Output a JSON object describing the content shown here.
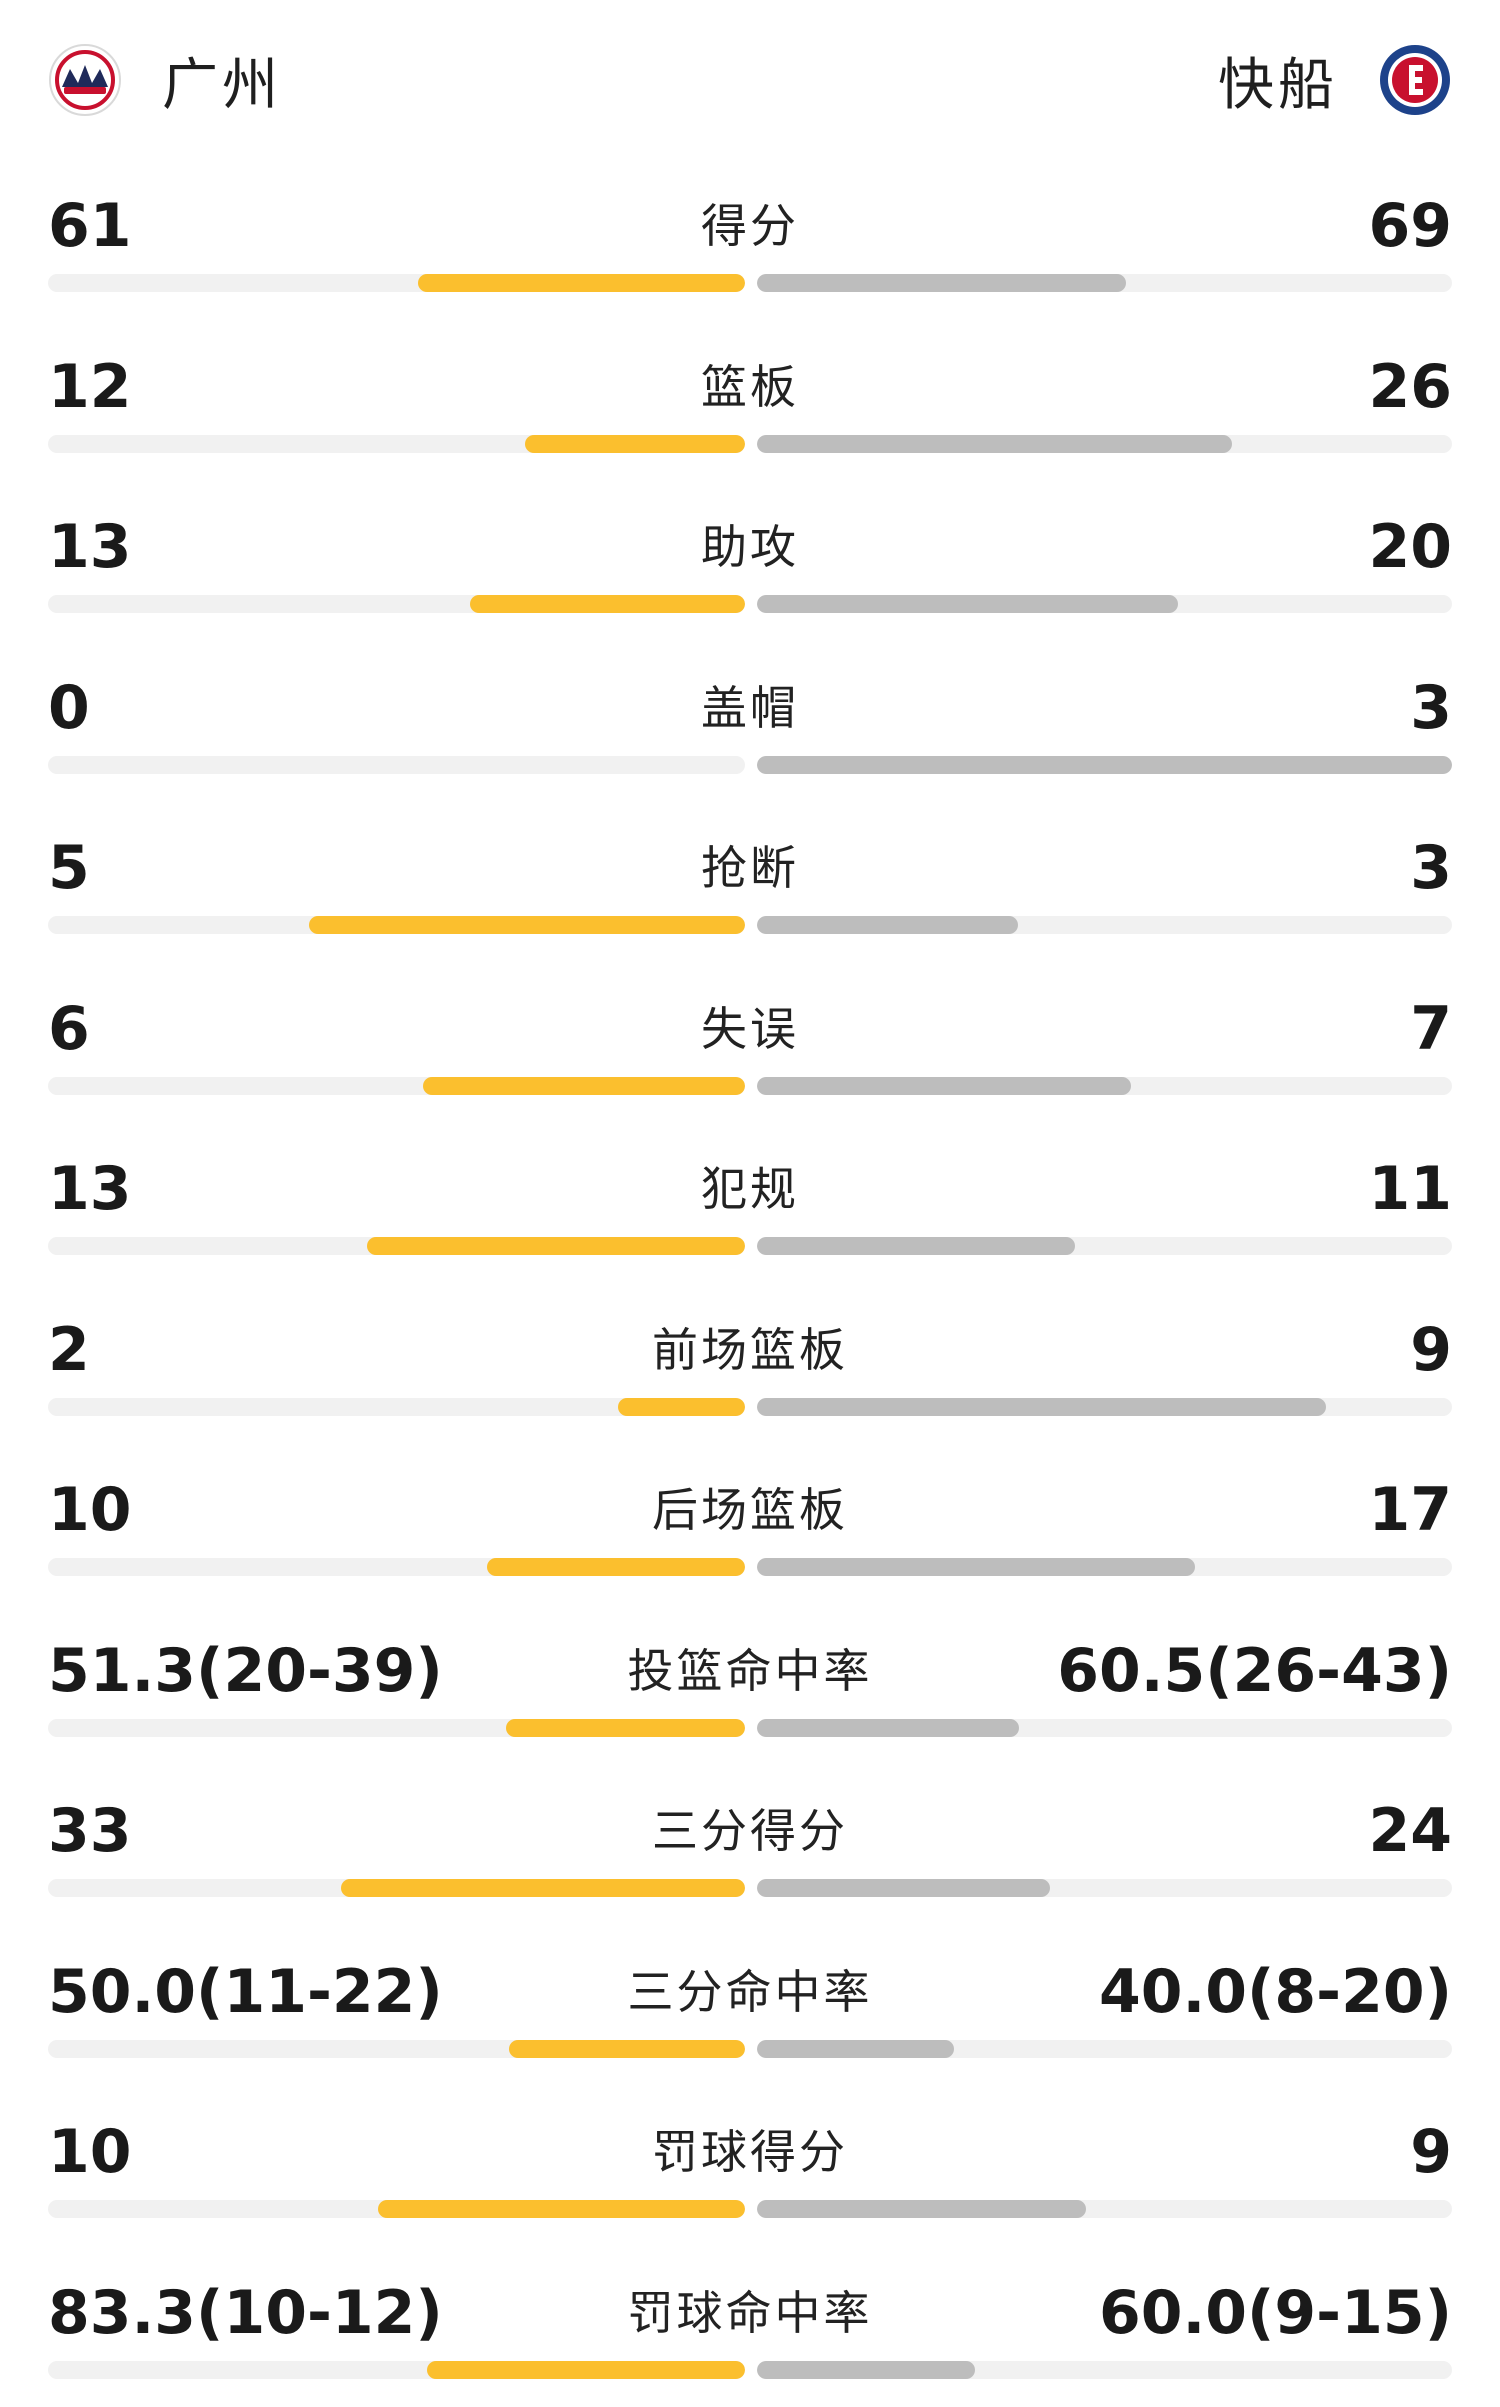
{
  "header": {
    "home": {
      "name": "广州",
      "logo_icon": "guangzhou-loong-lions-logo-icon"
    },
    "away": {
      "name": "快船",
      "logo_icon": "clippers-logo-icon"
    }
  },
  "colors": {
    "home_bar": "#fbbf2e",
    "away_bar": "#bdbdbd",
    "track": "#f1f1f1"
  },
  "stats": [
    {
      "label": "得分",
      "home": "61",
      "away": "69",
      "home_share": 0.469,
      "away_share": 0.531
    },
    {
      "label": "篮板",
      "home": "12",
      "away": "26",
      "home_share": 0.316,
      "away_share": 0.684
    },
    {
      "label": "助攻",
      "home": "13",
      "away": "20",
      "home_share": 0.394,
      "away_share": 0.606
    },
    {
      "label": "盖帽",
      "home": "0",
      "away": "3",
      "home_share": 0.0,
      "away_share": 1.0
    },
    {
      "label": "抢断",
      "home": "5",
      "away": "3",
      "home_share": 0.625,
      "away_share": 0.375
    },
    {
      "label": "失误",
      "home": "6",
      "away": "7",
      "home_share": 0.462,
      "away_share": 0.538
    },
    {
      "label": "犯规",
      "home": "13",
      "away": "11",
      "home_share": 0.542,
      "away_share": 0.458
    },
    {
      "label": "前场篮板",
      "home": "2",
      "away": "9",
      "home_share": 0.182,
      "away_share": 0.818
    },
    {
      "label": "后场篮板",
      "home": "10",
      "away": "17",
      "home_share": 0.37,
      "away_share": 0.63
    },
    {
      "label": "投篮命中率",
      "home": "51.3(20-39)",
      "away": "60.5(26-43)",
      "home_share": 0.343,
      "away_share": 0.377
    },
    {
      "label": "三分得分",
      "home": "33",
      "away": "24",
      "home_share": 0.579,
      "away_share": 0.421
    },
    {
      "label": "三分命中率",
      "home": "50.0(11-22)",
      "away": "40.0(8-20)",
      "home_share": 0.338,
      "away_share": 0.283
    },
    {
      "label": "罚球得分",
      "home": "10",
      "away": "9",
      "home_share": 0.526,
      "away_share": 0.474
    },
    {
      "label": "罚球命中率",
      "home": "83.3(10-12)",
      "away": "60.0(9-15)",
      "home_share": 0.456,
      "away_share": 0.314
    }
  ]
}
